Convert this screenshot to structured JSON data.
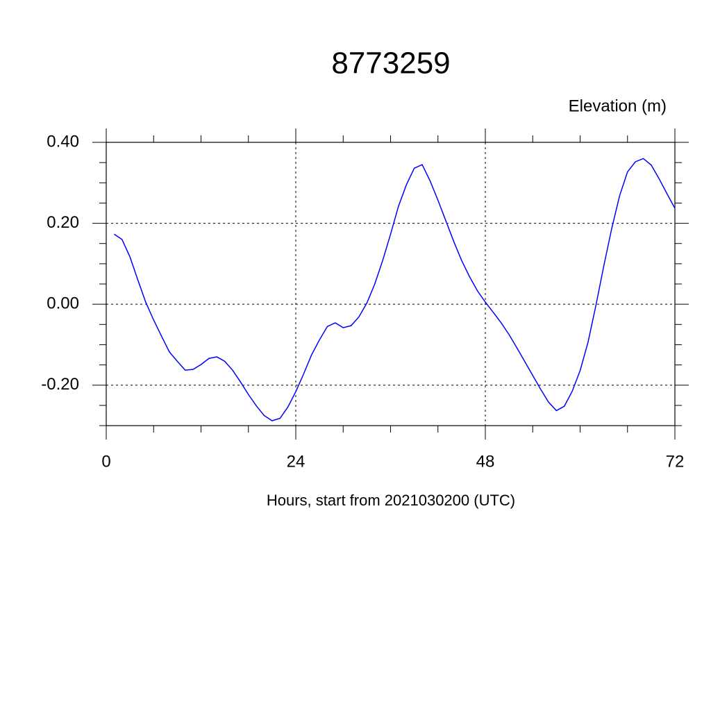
{
  "chart_data": {
    "type": "line",
    "title": "8773259",
    "ylabel": "Elevation (m)",
    "xlabel": "Hours, start from 2021030200 (UTC)",
    "x": [
      1,
      2,
      3,
      4,
      5,
      6,
      7,
      8,
      9,
      10,
      11,
      12,
      13,
      14,
      15,
      16,
      17,
      18,
      19,
      20,
      21,
      22,
      23,
      24,
      25,
      26,
      27,
      28,
      29,
      30,
      31,
      32,
      33,
      34,
      35,
      36,
      37,
      38,
      39,
      40,
      41,
      42,
      43,
      44,
      45,
      46,
      47,
      48,
      49,
      50,
      51,
      52,
      53,
      54,
      55,
      56,
      57,
      58,
      59,
      60,
      61,
      62,
      63,
      64,
      65,
      66,
      67,
      68,
      69,
      70,
      71,
      72
    ],
    "values": [
      0.173,
      0.16,
      0.117,
      0.06,
      0.005,
      -0.039,
      -0.079,
      -0.118,
      -0.141,
      -0.163,
      -0.161,
      -0.149,
      -0.134,
      -0.13,
      -0.141,
      -0.163,
      -0.192,
      -0.223,
      -0.251,
      -0.275,
      -0.288,
      -0.282,
      -0.254,
      -0.216,
      -0.172,
      -0.125,
      -0.088,
      -0.055,
      -0.046,
      -0.058,
      -0.053,
      -0.031,
      0.003,
      0.05,
      0.108,
      0.173,
      0.242,
      0.295,
      0.336,
      0.345,
      0.305,
      0.257,
      0.206,
      0.155,
      0.108,
      0.068,
      0.033,
      0.005,
      -0.02,
      -0.046,
      -0.075,
      -0.108,
      -0.142,
      -0.176,
      -0.21,
      -0.242,
      -0.263,
      -0.252,
      -0.215,
      -0.164,
      -0.094,
      -0.003,
      0.095,
      0.187,
      0.268,
      0.327,
      0.352,
      0.36,
      0.344,
      0.31,
      0.273,
      0.237
    ],
    "color": "#0000ff",
    "xlim": [
      0,
      72
    ],
    "xticks": [
      0,
      24,
      48,
      72
    ],
    "xminorticks": [
      6,
      12,
      18,
      30,
      36,
      42,
      54,
      60,
      66
    ],
    "ylim": [
      -0.3,
      0.4
    ],
    "yticks": [
      {
        "value": 0.4,
        "label": "0.40"
      },
      {
        "value": 0.2,
        "label": "0.20"
      },
      {
        "value": 0,
        "label": "0.00"
      },
      {
        "value": -0.2,
        "label": "-0.20"
      }
    ],
    "yminorticks": [
      -0.3,
      -0.25,
      -0.15,
      -0.1,
      -0.05,
      0.05,
      0.1,
      0.15,
      0.25,
      0.3,
      0.35
    ],
    "grid": true
  }
}
